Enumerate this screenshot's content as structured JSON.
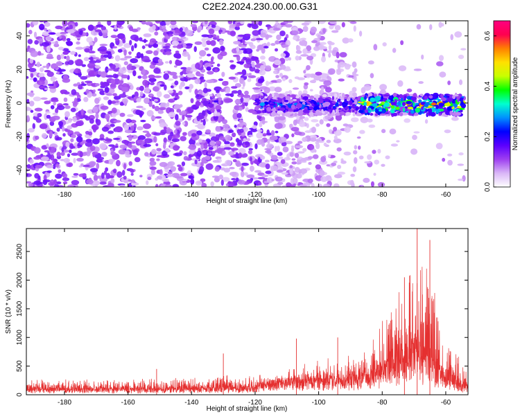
{
  "title": "C2E2.2024.230.00.00.G31",
  "chart_data": [
    {
      "type": "heatmap",
      "xlabel": "Height of straight line (km)",
      "ylabel": "Frequency (Hz)",
      "xlim": [
        -192,
        -53
      ],
      "ylim": [
        -50,
        49
      ],
      "xticks": [
        -180,
        -160,
        -140,
        -120,
        -100,
        -80,
        -60
      ],
      "yticks": [
        -40,
        -20,
        0,
        20,
        40
      ],
      "colorbar": {
        "label": "Normalized spectral amplitude",
        "range": [
          0,
          0.66
        ],
        "ticks": [
          0,
          0.2,
          0.4,
          0.6
        ],
        "colors": [
          "#ffffff",
          "#d9b6f7",
          "#9e3ff0",
          "#5b00ff",
          "#0000ff",
          "#0090ff",
          "#00ffd0",
          "#00ff00",
          "#c8ff00",
          "#ffe000",
          "#ff8000",
          "#ff0050",
          "#ff0080"
        ]
      },
      "band": {
        "frequency_center": -1,
        "frequency_halfwidth": 6,
        "segments": [
          {
            "x_start": -134,
            "x_end": -131,
            "peak": 0.25
          },
          {
            "x_start": -120,
            "x_end": -88,
            "peak": 0.3
          },
          {
            "x_start": -87,
            "x_end": -54,
            "peak": 0.6
          }
        ]
      },
      "noise": {
        "x_start": -192,
        "x_end": -110,
        "level": 0.12
      }
    },
    {
      "type": "line",
      "xlabel": "Height of straight line (km)",
      "ylabel": "SNR (10 * v/v)",
      "xlim": [
        -192,
        -53
      ],
      "ylim": [
        0,
        2900
      ],
      "xticks": [
        -180,
        -160,
        -140,
        -120,
        -100,
        -80,
        -60
      ],
      "yticks": [
        0,
        500,
        1000,
        1500,
        2000,
        2500
      ],
      "color": "#e53030",
      "envelope": [
        {
          "x": -192,
          "base": 120,
          "amp": 280
        },
        {
          "x": -150,
          "base": 110,
          "amp": 300
        },
        {
          "x": -135,
          "base": 130,
          "amp": 350
        },
        {
          "x": -122,
          "base": 130,
          "amp": 380
        },
        {
          "x": -112,
          "base": 300,
          "amp": 450
        },
        {
          "x": -100,
          "base": 320,
          "amp": 650
        },
        {
          "x": -90,
          "base": 350,
          "amp": 700
        },
        {
          "x": -84,
          "base": 400,
          "amp": 900
        },
        {
          "x": -78,
          "base": 600,
          "amp": 1700
        },
        {
          "x": -72,
          "base": 800,
          "amp": 2300
        },
        {
          "x": -69,
          "base": 900,
          "amp": 2850
        },
        {
          "x": -65,
          "base": 700,
          "amp": 2500
        },
        {
          "x": -60,
          "base": 300,
          "amp": 1000
        },
        {
          "x": -53,
          "base": 150,
          "amp": 500
        }
      ],
      "spikes": [
        {
          "x": -151,
          "value": 450
        },
        {
          "x": -130,
          "value": 720
        },
        {
          "x": -107,
          "value": 980
        },
        {
          "x": -94,
          "value": 1000
        },
        {
          "x": -73,
          "value": 2050
        },
        {
          "x": -69,
          "value": 2900
        },
        {
          "x": -65,
          "value": 2700
        }
      ]
    }
  ]
}
